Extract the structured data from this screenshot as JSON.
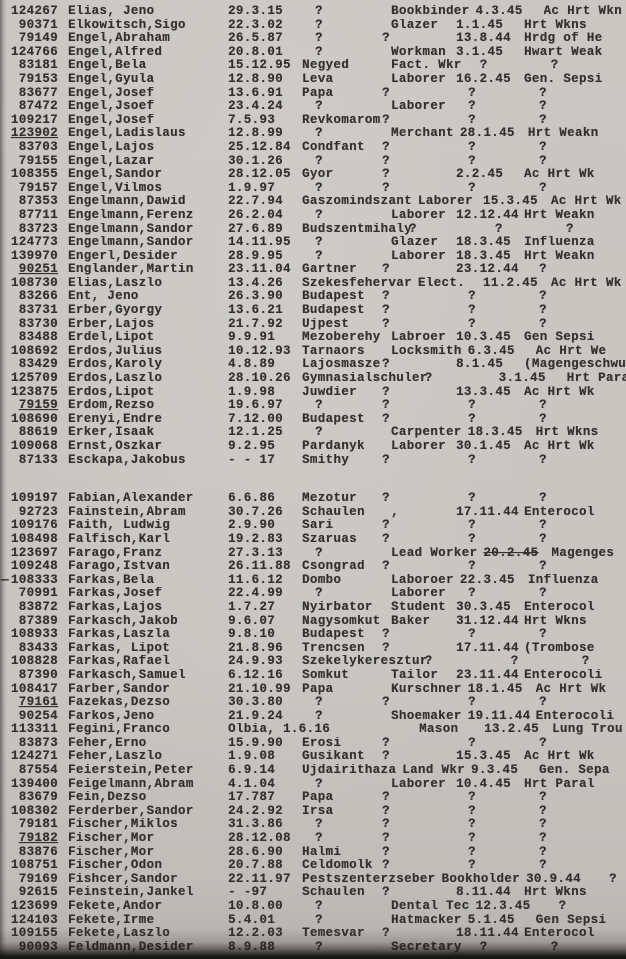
{
  "page": {
    "paper_color": "#c7c5c0",
    "ink_color": "#33312d",
    "description": "Scanned typewritten register page, alphabetical E-F surnames"
  },
  "register": {
    "block1": [
      [
        "124267",
        "Elias, Jeno",
        "29.3.15",
        "?",
        "Bookbinder",
        "4.3.45",
        "Ac Hrt Wkn"
      ],
      [
        "90371",
        "Elkowitsch,Sigo",
        "22.3.02",
        "?",
        "Glazer",
        "1.1.45",
        "Hrt Wkns"
      ],
      [
        "79149",
        "Engel,Abraham",
        "26.5.87",
        "?",
        "?",
        "13.8.44",
        "Hrdg of He"
      ],
      [
        "124766",
        "Engel,Alfred",
        "20.8.01",
        "?",
        "Workman",
        "3.1.45",
        "Hwart Weak"
      ],
      [
        "83181",
        "Engel,Bela",
        "15.12.95",
        "Negyed",
        "Fact. Wkr",
        "?",
        "?"
      ],
      [
        "79153",
        "Engel,Gyula",
        "12.8.90",
        "Leva",
        "Laborer",
        "16.2.45",
        "Gen. Sepsi"
      ],
      [
        "83677",
        "Engel,Josef",
        "13.6.91",
        "Papa",
        "?",
        "?",
        "?"
      ],
      [
        "87472",
        "Engel,Jsoef",
        "23.4.24",
        "?",
        "Laborer",
        "?",
        "?"
      ],
      [
        "109217",
        "Engel,Josef",
        "7.5.93",
        "Revkomarom",
        "?",
        "?",
        "?"
      ],
      [
        "123902",
        "Engel,Ladislaus",
        "12.8.99",
        "?",
        "Merchant",
        "28.1.45",
        "Hrt Weakn",
        "u"
      ],
      [
        "83703",
        "Engel,Lajos",
        "25.12.84",
        "Condfant",
        "?",
        "?",
        "?"
      ],
      [
        "79155",
        "Engel,Lazar",
        "30.1.26",
        "?",
        "?",
        "?",
        "?"
      ],
      [
        "108355",
        "Engel,Sandor",
        "28.12.05",
        "Gyor",
        "?",
        "2.2.45",
        "Ac Hrt Wk"
      ],
      [
        "79157",
        "Engel,Vilmos",
        "1.9.97",
        "?",
        "?",
        "?",
        "?"
      ],
      [
        "87353",
        "Engelmann,Dawid",
        "22.7.94",
        "Gaszomindszant",
        "Laborer",
        "15.3.45",
        "Ac Hrt Wk"
      ],
      [
        "87711",
        "Engelmann,Ferenz",
        "26.2.04",
        "?",
        "Laborer",
        "12.12.44",
        "Hrt Weakn"
      ],
      [
        "83723",
        "Engelmann,Sandor",
        "27.6.89",
        "Budszentmihaly",
        "?",
        "?",
        "?"
      ],
      [
        "124773",
        "Engelmann,Sandor",
        "14.11.95",
        "?",
        "Glazer",
        "18.3.45",
        "Influenza"
      ],
      [
        "139970",
        "Engerl,Desider",
        "28.9.95",
        "?",
        "Laborer",
        "18.3.45",
        "Hrt Weakn"
      ],
      [
        "90251",
        "Englander,Martin",
        "23.11.04",
        "Gartner",
        "?",
        "23.12.44",
        "?",
        "u"
      ],
      [
        "108730",
        "Elias,Laszlo",
        "13.4.26",
        "Szekesfehervar",
        "Elect.",
        "11.2.45",
        "Ac Hrt Wk"
      ],
      [
        "83266",
        "Ent, Jeno",
        "26.3.90",
        "Budapest",
        "?",
        "?",
        "?"
      ],
      [
        "83731",
        "Erber,Gyorgy",
        "13.6.21",
        "Budapest",
        "?",
        "?",
        "?"
      ],
      [
        "83730",
        "Erber,Lajos",
        "21.7.92",
        "Ujpest",
        "?",
        "?",
        "?"
      ],
      [
        "83488",
        "Erdel,Lipot",
        "9.9.91",
        "Mezoberehy",
        "Labroer",
        "10.3.45",
        "Gen Sepsi"
      ],
      [
        "108692",
        "Erdos,Julius",
        "10.12.93",
        "Tarnaors",
        "Locksmith",
        "6.3.45",
        "Ac Hrt We"
      ],
      [
        "83429",
        "Erdos,Karoly",
        "4.8.89",
        "Lajosmasze",
        "?",
        "8.1.45",
        "(Magengeschwu"
      ],
      [
        "125709",
        "Erdos,Laszlo",
        "28.10.26",
        "Gymnasialschuler",
        "?",
        "3.1.45",
        "Hrt Paral"
      ],
      [
        "123875",
        "Erdos,Lipot",
        "1.9.98",
        "Juwdier",
        "?",
        "13.3.45",
        "Ac Hrt Wk"
      ],
      [
        "79159",
        "Erdom,Rezso",
        "19.6.97",
        "?",
        "?",
        "?",
        "?",
        "u"
      ],
      [
        "108690",
        "Erenyi,Endre",
        "7.12.00",
        "Budapest",
        "?",
        "?",
        "?"
      ],
      [
        "88619",
        "Erker,Isaak",
        "12.1.25",
        "?",
        "Carpenter",
        "18.3.45",
        "Hrt Wkns"
      ],
      [
        "109068",
        "Ernst,Oszkar",
        "9.2.95",
        "Pardanyk",
        "Laborer",
        "30.1.45",
        "Ac Hrt Wk"
      ],
      [
        "87133",
        "Esckapa,Jakobus",
        "- - 17",
        "Smithy",
        "?",
        "?",
        "?"
      ]
    ],
    "block2": [
      [
        "109197",
        "Fabian,Alexander",
        "6.6.86",
        "Mezotur",
        "?",
        "?",
        "?"
      ],
      [
        "92723",
        "Fainstein,Abram",
        "30.7.26",
        "Schaulen",
        ",",
        "17.11.44",
        "Enterocol"
      ],
      [
        "109176",
        "Faith, Ludwig",
        "2.9.90",
        "Sari",
        "?",
        "?",
        "?"
      ],
      [
        "108498",
        "Falfisch,Karl",
        "19.2.83",
        "Szaruas",
        "?",
        "?",
        "?"
      ],
      [
        "123697",
        "Farago,Franz",
        "27.3.13",
        "?",
        "Lead Worker",
        "20.2.45",
        "Magenges",
        "x"
      ],
      [
        "109248",
        "Farago,Istvan",
        "26.11.88",
        "Csongrad",
        "?",
        "?",
        "?"
      ],
      [
        "108333",
        "Farkas,Bela",
        "11.6.12",
        "Dombo",
        "Laboroer",
        "22.3.45",
        "Influenza",
        "d"
      ],
      [
        "70991",
        "Farkas,Josef",
        "22.4.99",
        "?",
        "Laborer",
        "?",
        "?"
      ],
      [
        "83872",
        "Farkas,Lajos",
        "1.7.27",
        "Nyirbator",
        "Student",
        "30.3.45",
        "Enterocol"
      ],
      [
        "87389",
        "Farkasch,Jakob",
        "9.6.07",
        "Nagysomkut",
        "Baker",
        "31.12.44",
        "Hrt Wkns"
      ],
      [
        "108933",
        "Farkas,Laszla",
        "9.8.10",
        "Budapest",
        "?",
        "?",
        "?"
      ],
      [
        "83433",
        "Farkas, Lipot",
        "21.8.96",
        "Trencsen",
        "?",
        "17.11.44",
        "(Trombose"
      ],
      [
        "108828",
        "Farkas,Rafael",
        "24.9.93",
        "Szekelykeresztur",
        "?",
        "?",
        "?"
      ],
      [
        "87390",
        "Farkasch,Samuel",
        "6.12.16",
        "Somkut",
        "Tailor",
        "23.11.44",
        "Enterocoli"
      ],
      [
        "108417",
        "Farber,Sandor",
        "21.10.99",
        "Papa",
        "Kurschner",
        "18.1.45",
        "Ac Hrt Wk"
      ],
      [
        "79161",
        "Fazekas,Dezso",
        "30.3.80",
        "?",
        "?",
        "?",
        "?",
        "u"
      ],
      [
        "90254",
        "Farkos,Jeno",
        "21.9.24",
        "?",
        "Shoemaker",
        "19.11.44",
        "Enterocoli"
      ],
      [
        "113311",
        "Fegini,Franco",
        "Olbia, 1.6.16",
        "",
        "Mason",
        "13.2.45",
        "Lung Trou"
      ],
      [
        "83873",
        "Feher,Erno",
        "15.9.90",
        "Erosi",
        "?",
        "?",
        "?"
      ],
      [
        "124271",
        "Feher,Laszlo",
        "1.9.08",
        "Gusikant",
        "?",
        "15.3.45",
        "Ac Hrt Wk"
      ],
      [
        "87554",
        "Feierstein,Peter",
        "6.9.14",
        "Ujdairithaza",
        "Land Wkr",
        "9.3.45",
        "Gen. Sepa"
      ],
      [
        "139400",
        "Feigelmann,Abram",
        "4.1.04",
        "?",
        "Laborer",
        "10.4.45",
        "Hrt Paral"
      ],
      [
        "83679",
        "Fein,Dezso",
        "17.787",
        "Papa",
        "?",
        "?",
        "?"
      ],
      [
        "108302",
        "Ferderber,Sandor",
        "24.2.92",
        "Irsa",
        "?",
        "?",
        "?"
      ],
      [
        "79181",
        "Fischer,Miklos",
        "31.3.86",
        "?",
        "?",
        "?",
        "?"
      ],
      [
        "79182",
        "Fischer,Mor",
        "28.12.08",
        "?",
        "?",
        "?",
        "?",
        "u"
      ],
      [
        "83876",
        "Fischer,Mor",
        "28.6.90",
        "Halmi",
        "?",
        "?",
        "?"
      ],
      [
        "108751",
        "Fischer,Odon",
        "20.7.88",
        "Celdomolk",
        "?",
        "?",
        "?"
      ],
      [
        "79169",
        "Fishcer,Sandor",
        "22.11.97",
        "Pestszenterzseber",
        "Bookholder",
        "30.9.44",
        "?"
      ],
      [
        "92615",
        "Feinstein,Jankel",
        "- -97",
        "Schaulen",
        "?",
        "8.11.44",
        "Hrt Wkns"
      ],
      [
        "123699",
        "Fekete,Andor",
        "10.8.00",
        "?",
        "Dental Tec",
        "12.3.45",
        "?"
      ],
      [
        "124103",
        "Fekete,Irme",
        "5.4.01",
        "?",
        "Hatmacker",
        "5.1.45",
        "Gen Sepsi"
      ],
      [
        "109155",
        "Fekete,Laszlo",
        "12.2.03",
        "Temesvar",
        "?",
        "18.11.44",
        "Enterocol"
      ],
      [
        "90093",
        "Feldmann,Desider",
        "8.9.88",
        "?",
        "Secretary",
        "?",
        "?"
      ]
    ]
  }
}
